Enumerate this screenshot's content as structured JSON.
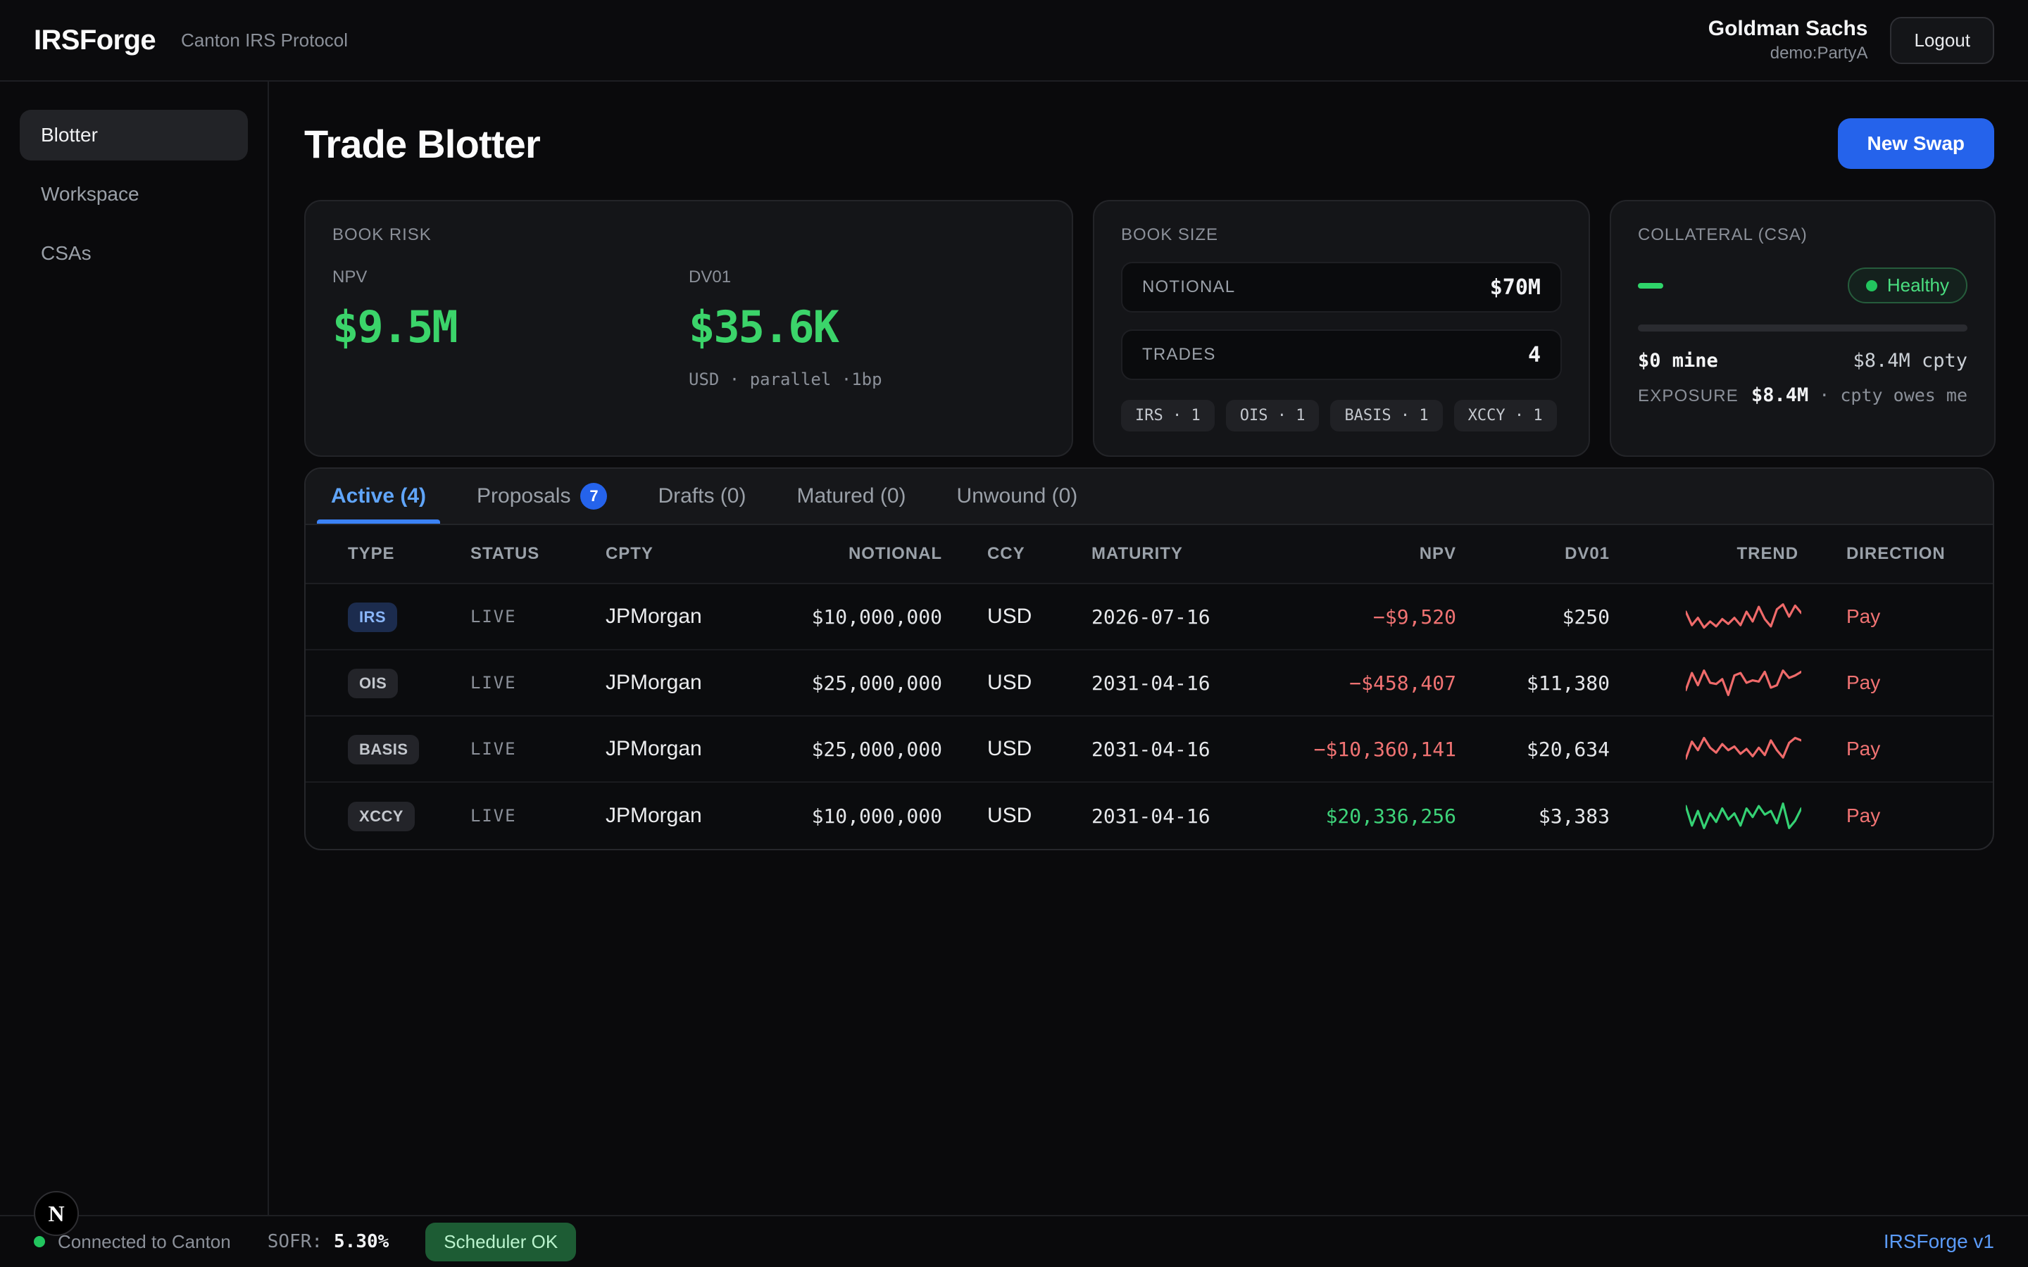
{
  "header": {
    "brand": "IRSForge",
    "subtitle": "Canton IRS Protocol",
    "user_name": "Goldman Sachs",
    "user_party": "demo:PartyA",
    "logout_label": "Logout"
  },
  "sidebar": {
    "items": [
      {
        "label": "Blotter",
        "active": true
      },
      {
        "label": "Workspace",
        "active": false
      },
      {
        "label": "CSAs",
        "active": false
      }
    ]
  },
  "page": {
    "title": "Trade Blotter",
    "new_swap_label": "New Swap"
  },
  "cards": {
    "book_risk": {
      "title": "BOOK RISK",
      "npv_label": "NPV",
      "npv_value": "$9.5M",
      "dv01_label": "DV01",
      "dv01_value": "$35.6K",
      "dv01_note": "USD · parallel ·1bp"
    },
    "book_size": {
      "title": "BOOK SIZE",
      "notional_label": "NOTIONAL",
      "notional_value": "$70M",
      "trades_label": "TRADES",
      "trades_value": "4",
      "chips": [
        "IRS · 1",
        "OIS · 1",
        "BASIS · 1",
        "XCCY · 1"
      ]
    },
    "collateral": {
      "title": "COLLATERAL (CSA)",
      "status_label": "Healthy",
      "mine": "$0 mine",
      "cpty": "$8.4M cpty",
      "exposure_label": "EXPOSURE",
      "exposure_value": "$8.4M",
      "exposure_note": "· cpty owes me"
    }
  },
  "tabs": [
    {
      "label": "Active (4)",
      "active": true
    },
    {
      "label": "Proposals",
      "badge": "7"
    },
    {
      "label": "Drafts (0)"
    },
    {
      "label": "Matured (0)"
    },
    {
      "label": "Unwound (0)"
    }
  ],
  "table": {
    "columns": [
      "TYPE",
      "STATUS",
      "CPTY",
      "NOTIONAL",
      "CCY",
      "MATURITY",
      "NPV",
      "DV01",
      "TREND",
      "DIRECTION"
    ],
    "rows": [
      {
        "type": "IRS",
        "status": "LIVE",
        "cpty": "JPMorgan",
        "notional": "$10,000,000",
        "ccy": "USD",
        "maturity": "2026-07-16",
        "npv": "−$9,520",
        "dv01": "$250",
        "direction": "Pay",
        "trend": [
          8,
          19,
          13,
          21,
          16,
          20,
          14,
          18,
          13,
          19,
          8,
          16,
          4,
          14,
          20,
          6,
          2,
          12,
          3,
          9
        ],
        "trend_color": "red"
      },
      {
        "type": "OIS",
        "status": "LIVE",
        "cpty": "JPMorgan",
        "notional": "$25,000,000",
        "ccy": "USD",
        "maturity": "2031-04-16",
        "npv": "−$458,407",
        "dv01": "$11,380",
        "direction": "Pay",
        "trend": [
          18,
          4,
          14,
          2,
          12,
          13,
          9,
          22,
          6,
          4,
          12,
          10,
          11,
          3,
          16,
          14,
          2,
          8,
          6,
          3
        ],
        "trend_color": "red"
      },
      {
        "type": "BASIS",
        "status": "LIVE",
        "cpty": "JPMorgan",
        "notional": "$25,000,000",
        "ccy": "USD",
        "maturity": "2031-04-16",
        "npv": "−$10,360,141",
        "dv01": "$20,634",
        "direction": "Pay",
        "trend": [
          20,
          6,
          13,
          3,
          11,
          15,
          8,
          13,
          10,
          16,
          12,
          18,
          11,
          17,
          5,
          13,
          19,
          7,
          3,
          5
        ],
        "trend_color": "red"
      },
      {
        "type": "XCCY",
        "status": "LIVE",
        "cpty": "JPMorgan",
        "notional": "$10,000,000",
        "ccy": "USD",
        "maturity": "2031-04-16",
        "npv": "$20,336,256",
        "dv01": "$3,383",
        "direction": "Pay",
        "trend": [
          4,
          20,
          8,
          22,
          10,
          17,
          6,
          15,
          10,
          20,
          6,
          13,
          4,
          11,
          8,
          18,
          2,
          22,
          16,
          6
        ],
        "trend_color": "green"
      }
    ]
  },
  "footer": {
    "connection": "Connected to Canton",
    "sofr_label": "SOFR:",
    "sofr_value": "5.30%",
    "scheduler": "Scheduler OK",
    "version": "IRSForge v1",
    "dev_logo": "N"
  },
  "colors": {
    "accent_blue": "#2563eb",
    "tab_blue": "#60a5fa",
    "positive_green": "#3bd46a",
    "negative_red": "#f07373",
    "healthy_green": "#22c55e"
  }
}
